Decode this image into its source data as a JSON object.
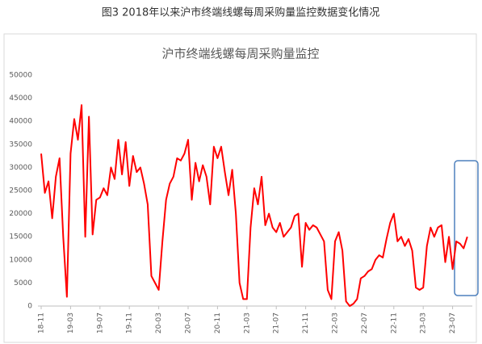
{
  "chart_data": {
    "type": "line",
    "title": "图3  2018年以来沪市终端线螺每周采购量监控数据变化情况",
    "subtitle": "沪市终端线螺每周采购量监控",
    "categories": [
      "18-11",
      null,
      null,
      null,
      null,
      null,
      null,
      null,
      "19-03",
      null,
      null,
      null,
      null,
      null,
      null,
      null,
      "19-07",
      null,
      null,
      null,
      null,
      null,
      null,
      null,
      "19-11",
      null,
      null,
      null,
      null,
      null,
      null,
      null,
      "20-03",
      null,
      null,
      null,
      null,
      null,
      null,
      null,
      "20-07",
      null,
      null,
      null,
      null,
      null,
      null,
      null,
      "20-11",
      null,
      null,
      null,
      null,
      null,
      null,
      null,
      "21-03",
      null,
      null,
      null,
      null,
      null,
      null,
      null,
      "21-07",
      null,
      null,
      null,
      null,
      null,
      null,
      null,
      "21-11",
      null,
      null,
      null,
      null,
      null,
      null,
      null,
      "22-03",
      null,
      null,
      null,
      null,
      null,
      null,
      null,
      "22-07",
      null,
      null,
      null,
      null,
      null,
      null,
      null,
      "22-11",
      null,
      null,
      null,
      null,
      null,
      null,
      null,
      "23-03",
      null,
      null,
      null,
      null,
      null,
      null,
      null,
      "23-07",
      null,
      null,
      null,
      null
    ],
    "values": [
      33000,
      24500,
      27000,
      19000,
      28000,
      32000,
      15000,
      2000,
      33000,
      40500,
      36000,
      43500,
      15000,
      41000,
      15500,
      23000,
      23500,
      25500,
      24000,
      30000,
      27500,
      36000,
      28500,
      35500,
      26000,
      32500,
      29000,
      30000,
      26500,
      22000,
      6500,
      5000,
      3500,
      14000,
      23000,
      26500,
      28000,
      32000,
      31500,
      33000,
      36000,
      23000,
      31000,
      27000,
      30500,
      28000,
      22000,
      34500,
      32000,
      34500,
      29000,
      24000,
      29500,
      20000,
      5000,
      1500,
      1500,
      17000,
      25500,
      22000,
      28000,
      17500,
      20000,
      17000,
      16000,
      18000,
      15000,
      16000,
      17000,
      19500,
      20000,
      8500,
      18000,
      16500,
      17500,
      17000,
      15500,
      14000,
      3500,
      1500,
      14000,
      16000,
      12000,
      1000,
      0,
      500,
      1500,
      6000,
      6500,
      7500,
      8000,
      10000,
      11000,
      10500,
      14500,
      18000,
      20000,
      14000,
      15000,
      13000,
      14500,
      12000,
      4000,
      3500,
      4000,
      13000,
      17000,
      15000,
      17000,
      17500,
      9500,
      15000,
      8000,
      14000,
      13500,
      12500,
      15000
    ],
    "color": "#ff0000",
    "ylim": [
      0,
      50000
    ],
    "yticks": [
      0,
      5000,
      10000,
      15000,
      20000,
      25000,
      30000,
      35000,
      40000,
      45000,
      50000
    ],
    "grid": false
  }
}
